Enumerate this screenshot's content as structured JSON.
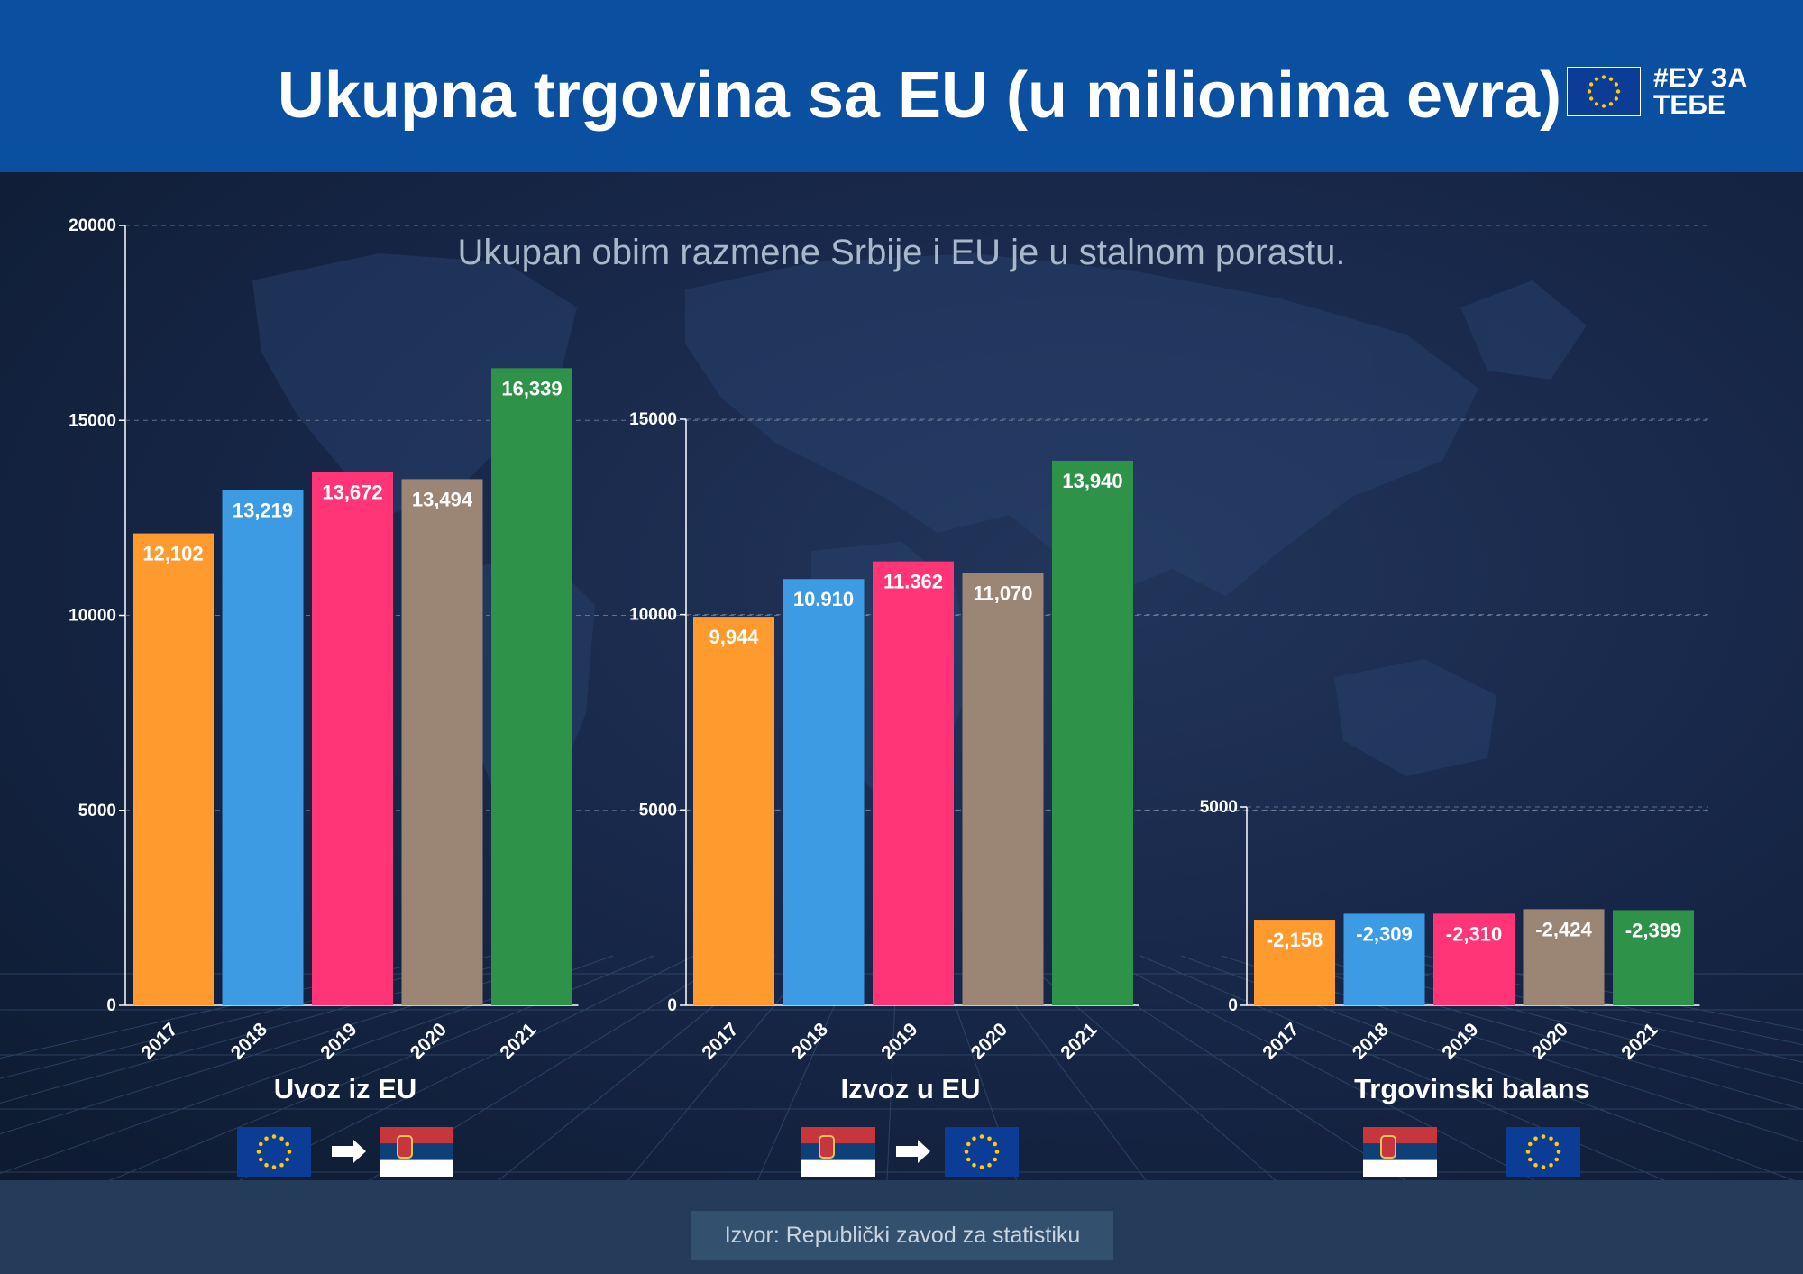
{
  "header": {
    "title": "Ukupna trgovina sa EU (u milionima evra)",
    "brand": "#ЕУ ЗА ТЕБЕ"
  },
  "subtitle": "Ukupan obim razmene Srbije i EU je u stalnom porastu.",
  "source": "Izvor: Republički zavod za statistiku",
  "colors": {
    "header_bg": "#0a4fa0",
    "years": [
      "#ff9a2e",
      "#3d9be3",
      "#ff3577",
      "#9b8575",
      "#2f9249"
    ]
  },
  "icons": [
    "eu-flag-icon",
    "serbia-flag-icon",
    "arrow-right-icon"
  ],
  "chart_data": [
    {
      "type": "bar",
      "title": "Uvoz iz EU",
      "categories": [
        "2017",
        "2018",
        "2019",
        "2020",
        "2021"
      ],
      "values": [
        12102,
        13219,
        13672,
        13494,
        16339
      ],
      "labels": [
        "12,102",
        "13,219",
        "13,672",
        "13,494",
        "16,339"
      ],
      "yticks": [
        "0",
        "5000",
        "10000",
        "15000",
        "20000"
      ],
      "ylim": [
        0,
        20000
      ],
      "flags": [
        "eu",
        "arrow",
        "serbia"
      ]
    },
    {
      "type": "bar",
      "title": "Izvoz u EU",
      "categories": [
        "2017",
        "2018",
        "2019",
        "2020",
        "2021"
      ],
      "values": [
        9944,
        10910,
        11362,
        11070,
        13940
      ],
      "labels": [
        "9,944",
        "10.910",
        "11.362",
        "11,070",
        "13,940"
      ],
      "yticks": [
        "0",
        "5000",
        "10000",
        "15000"
      ],
      "ylim": [
        0,
        15000
      ],
      "flags": [
        "serbia",
        "arrow",
        "eu"
      ]
    },
    {
      "type": "bar",
      "title": "Trgovinski balans",
      "categories": [
        "2017",
        "2018",
        "2019",
        "2020",
        "2021"
      ],
      "values": [
        -2158,
        -2309,
        -2310,
        -2424,
        -2399
      ],
      "labels": [
        "-2,158",
        "-2,309",
        "-2,310",
        "-2,424",
        "-2,399"
      ],
      "yticks": [
        "0",
        "5000"
      ],
      "ylim": [
        0,
        5000
      ],
      "flags": [
        "serbia",
        "gap",
        "eu"
      ]
    }
  ]
}
